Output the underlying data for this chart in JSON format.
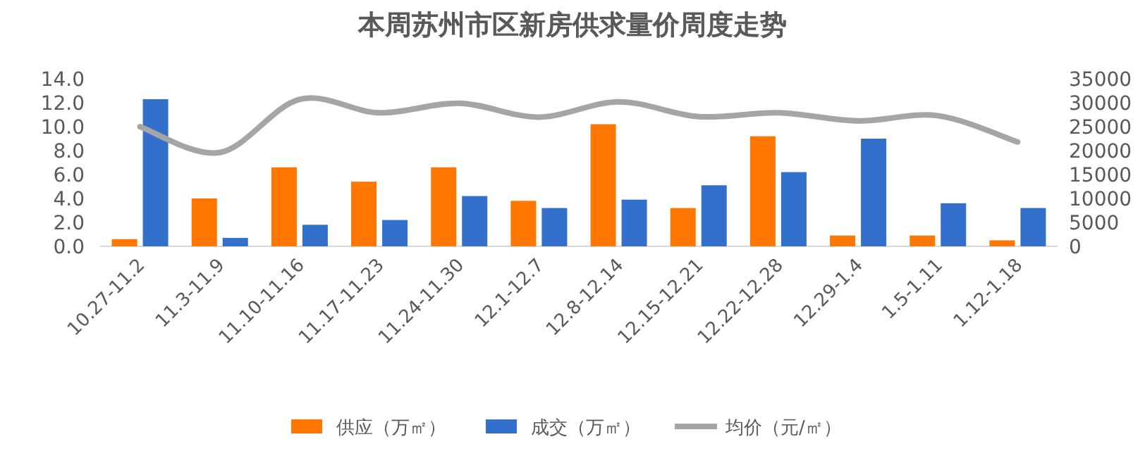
{
  "chart_data": {
    "type": "bar",
    "title": "本周苏州市区新房供求量价周度走势",
    "categories": [
      "10.27-11.2",
      "11.3-11.9",
      "11.10-11.16",
      "11.17-11.23",
      "11.24-11.30",
      "12.1-12.7",
      "12.8-12.14",
      "12.15-12.21",
      "12.22-12.28",
      "12.29-1.4",
      "1.5-1.11",
      "1.12-1.18"
    ],
    "series": [
      {
        "name": "供应（万㎡）",
        "color": "#ff7700",
        "values": [
          0.6,
          4.0,
          6.6,
          5.4,
          6.6,
          3.8,
          10.2,
          3.2,
          9.2,
          0.9,
          0.9,
          0.5
        ]
      },
      {
        "name": "成交（万㎡）",
        "color": "#3370cc",
        "values": [
          12.3,
          0.7,
          1.8,
          2.2,
          4.2,
          3.2,
          3.9,
          5.1,
          6.2,
          9.0,
          3.6,
          3.2
        ]
      },
      {
        "name": "均价（元/㎡）",
        "color": "#a5a5a5",
        "type": "line",
        "axis": "y2",
        "values": [
          25000,
          19600,
          30700,
          27900,
          29900,
          27000,
          30200,
          27100,
          27900,
          26200,
          27300,
          21800
        ]
      }
    ],
    "ylim": [
      0,
      14
    ],
    "yticks": [
      {
        "value": 0,
        "label": "0.0"
      },
      {
        "value": 2,
        "label": "2.0"
      },
      {
        "value": 4,
        "label": "4.0"
      },
      {
        "value": 6,
        "label": "6.0"
      },
      {
        "value": 8,
        "label": "8.0"
      },
      {
        "value": 10,
        "label": "10.0"
      },
      {
        "value": 12,
        "label": "12.0"
      },
      {
        "value": 14,
        "label": "14.0"
      }
    ],
    "y2lim": [
      0,
      35000
    ],
    "y2ticks": [
      0,
      5000,
      10000,
      15000,
      20000,
      25000,
      30000,
      35000
    ],
    "legend": "bottom",
    "grid": false
  }
}
